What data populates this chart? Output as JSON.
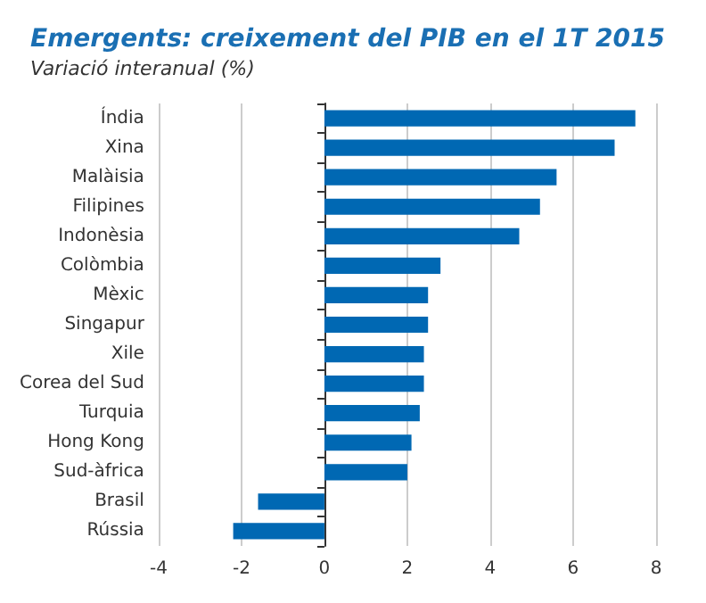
{
  "chart_data": {
    "type": "bar",
    "orientation": "horizontal",
    "title": "Emergents: creixement del PIB en el 1T 2015",
    "subtitle": "Variació interanual (%)",
    "categories": [
      "Índia",
      "Xina",
      "Malàisia",
      "Filipines",
      "Indonèsia",
      "Colòmbia",
      "Mèxic",
      "Singapur",
      "Xile",
      "Corea del Sud",
      "Turquia",
      "Hong Kong",
      "Sud-àfrica",
      "Brasil",
      "Rússia"
    ],
    "values": [
      7.5,
      7.0,
      5.6,
      5.2,
      4.7,
      2.8,
      2.5,
      2.5,
      2.4,
      2.4,
      2.3,
      2.1,
      2.0,
      -1.6,
      -2.2
    ],
    "color": "#0068b3",
    "xlim": [
      -4,
      8
    ],
    "xticks": [
      -4,
      -2,
      0,
      2,
      4,
      6,
      8
    ],
    "grid": "x"
  }
}
